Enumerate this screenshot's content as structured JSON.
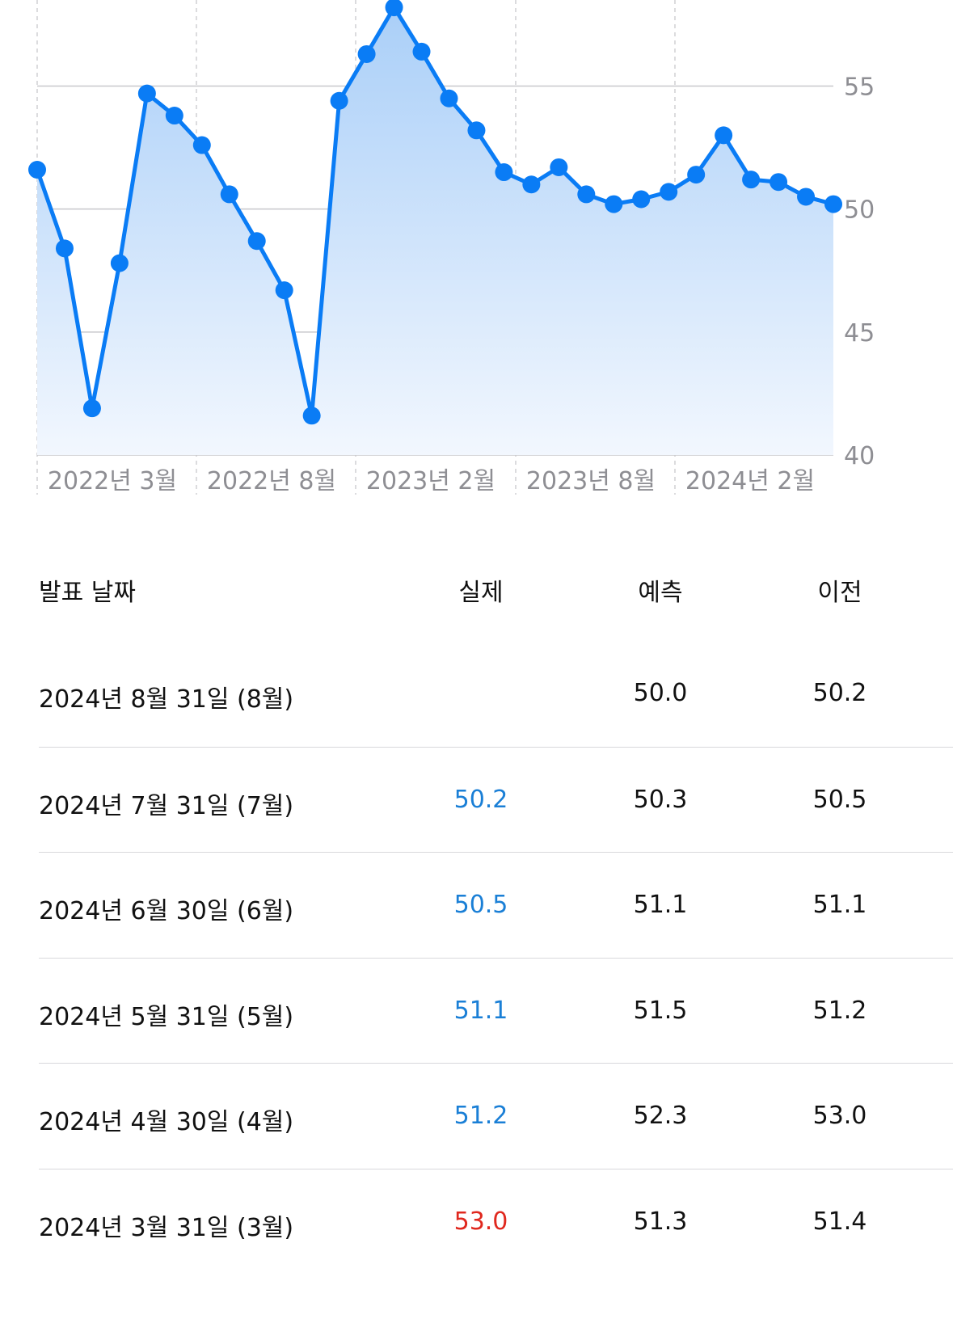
{
  "chart_data": {
    "type": "area",
    "x_tick_labels": [
      "2022년 3월",
      "2022년 8월",
      "2023년 2월",
      "2023년 8월",
      "2024년 2월"
    ],
    "y_ticks": [
      40,
      45,
      50,
      55
    ],
    "ylim": [
      40,
      58.5
    ],
    "grid": true,
    "series": [
      {
        "values": [
          51.6,
          48.4,
          41.9,
          47.8,
          54.7,
          53.8,
          52.6,
          50.6,
          48.7,
          46.7,
          41.6,
          54.4,
          56.3,
          58.2,
          56.4,
          54.5,
          53.2,
          51.5,
          51.0,
          51.7,
          50.6,
          50.2,
          50.4,
          50.7,
          51.4,
          53.0,
          51.2,
          51.1,
          50.5,
          50.2
        ]
      }
    ],
    "colors": {
      "line": "#0a7cf5",
      "fill_top": "#aacff8",
      "fill_bottom": "#f2f7fe",
      "grid": "#c8c8cc",
      "tick": "#8e8e93"
    }
  },
  "table": {
    "headers": {
      "date": "발표 날짜",
      "actual": "실제",
      "forecast": "예측",
      "previous": "이전"
    },
    "rows": [
      {
        "date": "2024년 8월 31일 (8월)",
        "actual": "",
        "actual_color": "#111111",
        "forecast": "50.0",
        "previous": "50.2"
      },
      {
        "date": "2024년 7월 31일 (7월)",
        "actual": "50.2",
        "actual_color": "#1a7fd6",
        "forecast": "50.3",
        "previous": "50.5"
      },
      {
        "date": "2024년 6월 30일 (6월)",
        "actual": "50.5",
        "actual_color": "#1a7fd6",
        "forecast": "51.1",
        "previous": "51.1"
      },
      {
        "date": "2024년 5월 31일 (5월)",
        "actual": "51.1",
        "actual_color": "#1a7fd6",
        "forecast": "51.5",
        "previous": "51.2"
      },
      {
        "date": "2024년 4월 30일 (4월)",
        "actual": "51.2",
        "actual_color": "#1a7fd6",
        "forecast": "52.3",
        "previous": "53.0"
      },
      {
        "date": "2024년 3월 31일 (3월)",
        "actual": "53.0",
        "actual_color": "#e0281e",
        "forecast": "51.3",
        "previous": "51.4"
      }
    ]
  }
}
